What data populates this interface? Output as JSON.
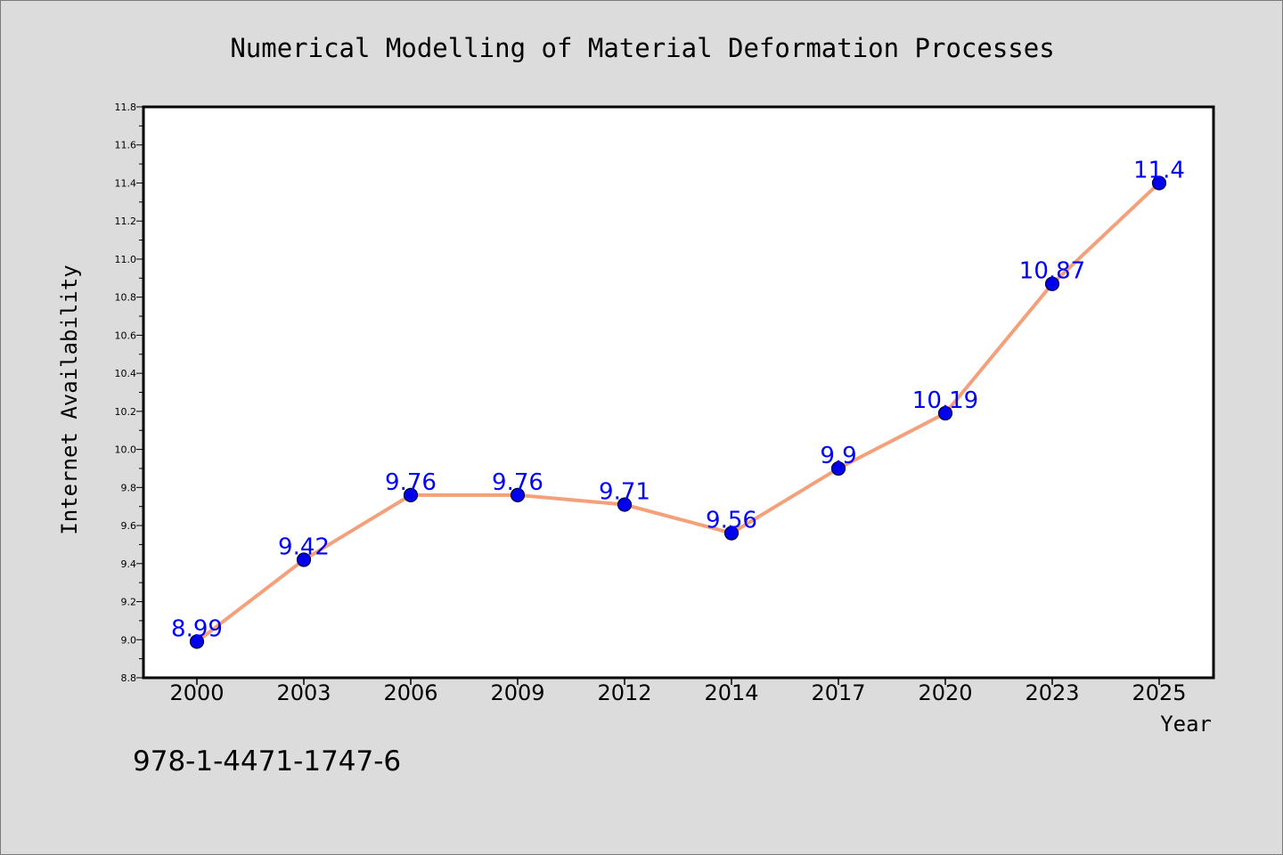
{
  "chart_data": {
    "type": "line",
    "title": "Numerical Modelling of Material Deformation Processes",
    "xlabel": "Year",
    "ylabel": "Internet Availability",
    "categories": [
      "2000",
      "2003",
      "2006",
      "2009",
      "2012",
      "2014",
      "2017",
      "2020",
      "2023",
      "2025"
    ],
    "series": [
      {
        "values": [
          8.99,
          9.42,
          9.76,
          9.76,
          9.71,
          9.56,
          9.9,
          10.19,
          10.87,
          11.4
        ]
      }
    ],
    "data_labels": [
      "8.99",
      "9.42",
      "9.76",
      "9.76",
      "9.71",
      "9.56",
      "9.9",
      "10.19",
      "10.87",
      "11.4"
    ],
    "ylim": [
      8.8,
      11.8
    ],
    "y_ticks": [
      "8.8",
      "9.0",
      "9.2",
      "9.4",
      "9.6",
      "9.8",
      "10.0",
      "10.2",
      "10.4",
      "10.6",
      "10.8",
      "11.0",
      "11.2",
      "11.4",
      "11.6",
      "11.8"
    ],
    "grid": false,
    "legend": "none",
    "colors": {
      "line": "#f4a07a",
      "marker_fill": "#0000ee",
      "marker_edge": "#000033",
      "data_label": "#0000ff",
      "figure_background": "#dcdcdc",
      "plot_background": "#ffffff",
      "axes_frame": "#000000"
    }
  },
  "annotation": {
    "isbn": "978-1-4471-1747-6"
  }
}
